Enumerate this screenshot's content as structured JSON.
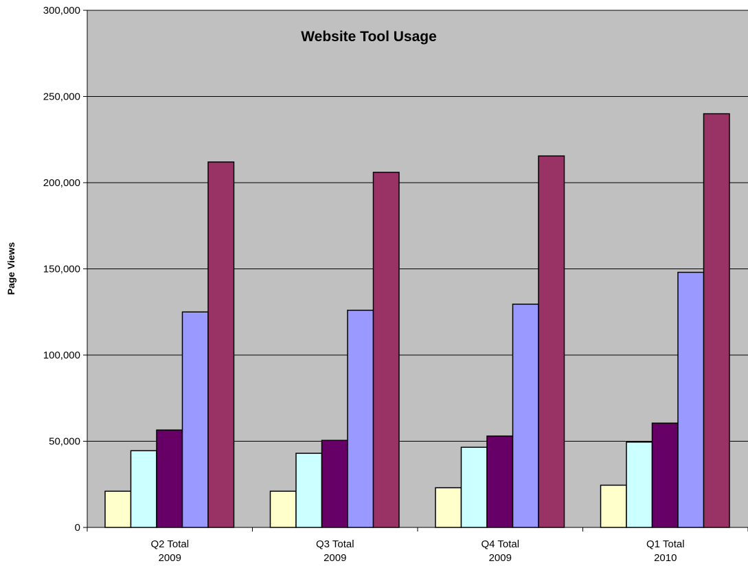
{
  "chart_data": {
    "type": "bar",
    "title": "Website Tool Usage",
    "xlabel": "",
    "ylabel": "Page Views",
    "ylim": [
      0,
      300000
    ],
    "yticks": [
      0,
      50000,
      100000,
      150000,
      200000,
      250000,
      300000
    ],
    "ytick_labels": [
      "0",
      "50,000",
      "100,000",
      "150,000",
      "200,000",
      "250,000",
      "300,000"
    ],
    "categories": [
      [
        "Q2 Total",
        "2009"
      ],
      [
        "Q3 Total",
        "2009"
      ],
      [
        "Q4 Total",
        "2009"
      ],
      [
        "Q1 Total",
        "2010"
      ]
    ],
    "grid": true,
    "legend": "none",
    "plot_background": "#c0c0c0",
    "series": [
      {
        "color": "#ffffcc",
        "values": [
          21000,
          21000,
          23000,
          24500
        ]
      },
      {
        "color": "#ccffff",
        "values": [
          44500,
          43000,
          46500,
          49500
        ]
      },
      {
        "color": "#660066",
        "values": [
          56500,
          50500,
          53000,
          60500
        ]
      },
      {
        "color": "#9999ff",
        "values": [
          125000,
          126000,
          129500,
          148000
        ]
      },
      {
        "color": "#993366",
        "values": [
          212000,
          206000,
          215500,
          240000
        ]
      }
    ]
  }
}
